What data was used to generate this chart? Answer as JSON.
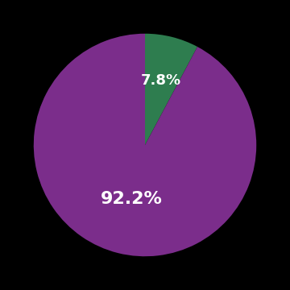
{
  "slices": [
    7.8,
    92.2
  ],
  "colors": [
    "#2e7d4f",
    "#7b2d8b"
  ],
  "labels": [
    "7.8%",
    "92.2%"
  ],
  "label_colors": [
    "white",
    "white"
  ],
  "label_fontsizes": [
    13,
    16
  ],
  "background_color": "#000000",
  "startangle": 90,
  "figsize": [
    3.6,
    3.6
  ],
  "dpi": 100
}
